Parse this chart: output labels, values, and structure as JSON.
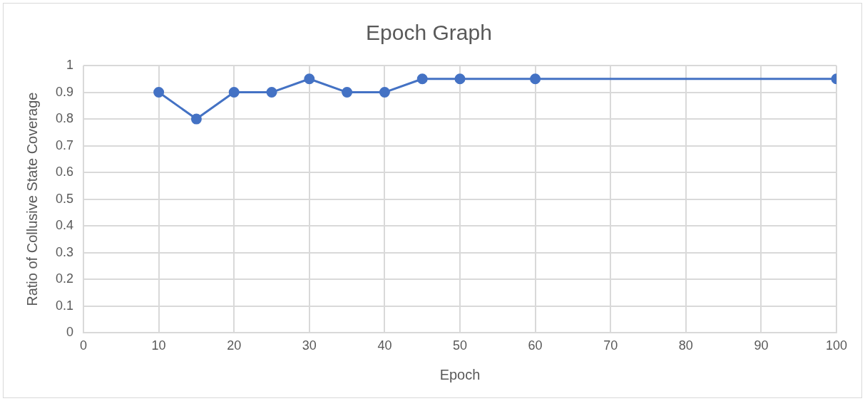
{
  "chart_data": {
    "type": "line",
    "title": "Epoch Graph",
    "xlabel": "Epoch",
    "ylabel": "Ratio of Collusive State Coverage",
    "x": [
      10,
      15,
      20,
      25,
      30,
      35,
      40,
      45,
      50,
      60,
      100
    ],
    "series": [
      {
        "color": "#4472c4",
        "values": [
          0.9,
          0.8,
          0.9,
          0.9,
          0.95,
          0.9,
          0.9,
          0.95,
          0.95,
          0.95,
          0.95
        ]
      }
    ],
    "xlim": [
      0,
      100
    ],
    "xticks": [
      0,
      10,
      20,
      30,
      40,
      50,
      60,
      70,
      80,
      90,
      100
    ],
    "ylim": [
      0,
      1
    ],
    "yticks": [
      0,
      0.1,
      0.2,
      0.3,
      0.4,
      0.5,
      0.6,
      0.7,
      0.8,
      0.9,
      1
    ],
    "grid": true,
    "legend": false,
    "marker": "circle",
    "line_style": "solid"
  }
}
